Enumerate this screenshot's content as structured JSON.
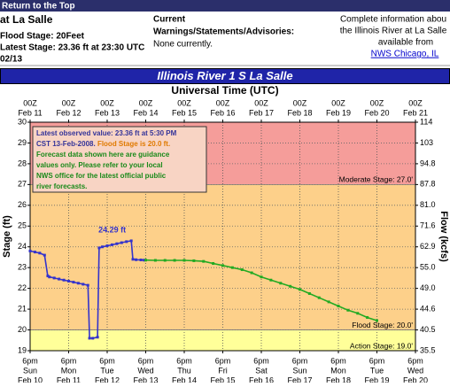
{
  "header": {
    "link": "Return to the Top",
    "location": "at La Salle",
    "flood_stage": "Flood Stage: 20Feet",
    "latest_stage": "Latest Stage: 23.36 ft at 23:30 UTC",
    "date": "02/13"
  },
  "warnings": {
    "title": "Current",
    "subtitle": "Warnings/Statements/Advisories:",
    "text": "None currently."
  },
  "info": {
    "lines": [
      "Complete information abou",
      "the Illinois River at La Salle",
      "available from"
    ],
    "link": "NWS Chicago, IL"
  },
  "chart_data": {
    "type": "line",
    "title": "Illinois River 1 S La Salle",
    "xlabel": "Universal Time (UTC)",
    "ylabel": "Stage (ft)",
    "y2label": "Flow (kcfs)",
    "xlim": [
      "Feb 11 00Z",
      "Feb 21 00Z"
    ],
    "xticks": [
      {
        "value": "Feb 11 00Z",
        "label": [
          "00Z",
          "Feb 11"
        ]
      },
      {
        "value": "Feb 12 00Z",
        "label": [
          "00Z",
          "Feb 12"
        ]
      },
      {
        "value": "Feb 13 00Z",
        "label": [
          "00Z",
          "Feb 13"
        ]
      },
      {
        "value": "Feb 14 00Z",
        "label": [
          "00Z",
          "Feb 14"
        ]
      },
      {
        "value": "Feb 15 00Z",
        "label": [
          "00Z",
          "Feb 15"
        ]
      },
      {
        "value": "Feb 16 00Z",
        "label": [
          "00Z",
          "Feb 16"
        ]
      },
      {
        "value": "Feb 17 00Z",
        "label": [
          "00Z",
          "Feb 17"
        ]
      },
      {
        "value": "Feb 18 00Z",
        "label": [
          "00Z",
          "Feb 18"
        ]
      },
      {
        "value": "Feb 19 00Z",
        "label": [
          "00Z",
          "Feb 19"
        ]
      },
      {
        "value": "Feb 20 00Z",
        "label": [
          "00Z",
          "Feb 20"
        ]
      },
      {
        "value": "Feb 21 00Z",
        "label": [
          "00Z",
          "Feb 21"
        ]
      }
    ],
    "x2ticks": [
      {
        "value": "Feb 11 00Z",
        "label": [
          "6pm",
          "Sun",
          "Feb 10"
        ]
      },
      {
        "value": "Feb 12 00Z",
        "label": [
          "6pm",
          "Mon",
          "Feb 11"
        ]
      },
      {
        "value": "Feb 13 00Z",
        "label": [
          "6pm",
          "Tue",
          "Feb 12"
        ]
      },
      {
        "value": "Feb 14 00Z",
        "label": [
          "6pm",
          "Wed",
          "Feb 13"
        ]
      },
      {
        "value": "Feb 15 00Z",
        "label": [
          "6pm",
          "Thu",
          "Feb 14"
        ]
      },
      {
        "value": "Feb 16 00Z",
        "label": [
          "6pm",
          "Fri",
          "Feb 15"
        ]
      },
      {
        "value": "Feb 17 00Z",
        "label": [
          "6pm",
          "Sat",
          "Feb 16"
        ]
      },
      {
        "value": "Feb 18 00Z",
        "label": [
          "6pm",
          "Sun",
          "Feb 17"
        ]
      },
      {
        "value": "Feb 19 00Z",
        "label": [
          "6pm",
          "Mon",
          "Feb 18"
        ]
      },
      {
        "value": "Feb 20 00Z",
        "label": [
          "6pm",
          "Tue",
          "Feb 19"
        ]
      },
      {
        "value": "Feb 21 00Z",
        "label": [
          "6pm",
          "Wed",
          "Feb 20"
        ]
      }
    ],
    "ylim": [
      19,
      30
    ],
    "yticks": [
      19,
      20,
      21,
      22,
      23,
      24,
      25,
      26,
      27,
      28,
      29,
      30
    ],
    "y2ticks": [
      35.5,
      40.5,
      44.6,
      {
        "value": 49,
        "label": "49.0"
      },
      {
        "value": 55,
        "label": "55.0"
      },
      62.9,
      71.6,
      {
        "value": 81,
        "label": "81.0"
      },
      87.8,
      94.8,
      103,
      114
    ],
    "grid": true,
    "stages": [
      {
        "label": "Action Stage: 19.0'",
        "value": 19,
        "color": "#ffff99"
      },
      {
        "label": "Flood Stage: 20.0'",
        "value": 20,
        "color": "#fdd08a"
      },
      {
        "label": "Moderate Stage: 27.0'",
        "value": 27,
        "color": "#f59d9a"
      }
    ],
    "series": [
      {
        "color": "#3333cc",
        "x": [
          "Feb 11 00Z",
          "Feb 11 03Z",
          "Feb 11 06Z",
          "Feb 11 09Z",
          "Feb 11 11Z",
          "Feb 11 12Z",
          "Feb 11 15Z",
          "Feb 11 18Z",
          "Feb 11 21Z",
          "Feb 12 00Z",
          "Feb 12 03Z",
          "Feb 12 06Z",
          "Feb 12 09Z",
          "Feb 12 12Z",
          "Feb 12 13Z",
          "Feb 12 15Z",
          "Feb 12 18Z",
          "Feb 12 19Z",
          "Feb 12 21Z",
          "Feb 13 00Z",
          "Feb 13 03Z",
          "Feb 13 06Z",
          "Feb 13 09Z",
          "Feb 13 12Z",
          "Feb 13 15Z",
          "Feb 13 16Z",
          "Feb 13 18Z",
          "Feb 13 21Z",
          "Feb 13 23Z"
        ],
        "values": [
          23.8,
          23.75,
          23.7,
          23.6,
          22.6,
          22.55,
          22.5,
          22.45,
          22.4,
          22.35,
          22.3,
          22.25,
          22.2,
          22.15,
          19.6,
          19.6,
          19.65,
          23.95,
          24.0,
          24.05,
          24.1,
          24.15,
          24.2,
          24.25,
          24.29,
          23.4,
          23.38,
          23.37,
          23.36
        ],
        "value_labels": [
          null,
          null,
          null,
          null,
          null,
          null,
          null,
          null,
          null,
          null,
          null,
          null,
          null,
          null,
          null,
          null,
          null,
          null,
          null,
          null,
          null,
          null,
          null,
          null,
          "24.29 ft",
          null,
          null,
          null,
          null
        ]
      },
      {
        "color": "#22aa22",
        "x": [
          "Feb 14 00Z",
          "Feb 14 06Z",
          "Feb 14 12Z",
          "Feb 14 18Z",
          "Feb 15 00Z",
          "Feb 15 06Z",
          "Feb 15 12Z",
          "Feb 15 18Z",
          "Feb 16 00Z",
          "Feb 16 06Z",
          "Feb 16 12Z",
          "Feb 16 18Z",
          "Feb 17 00Z",
          "Feb 17 06Z",
          "Feb 17 12Z",
          "Feb 17 18Z",
          "Feb 18 00Z",
          "Feb 18 06Z",
          "Feb 18 12Z",
          "Feb 18 18Z",
          "Feb 19 00Z",
          "Feb 19 06Z",
          "Feb 19 12Z",
          "Feb 19 18Z",
          "Feb 20 00Z"
        ],
        "values": [
          23.36,
          23.35,
          23.35,
          23.35,
          23.35,
          23.33,
          23.3,
          23.2,
          23.1,
          23.0,
          22.9,
          22.75,
          22.55,
          22.4,
          22.25,
          22.1,
          21.95,
          21.75,
          21.55,
          21.35,
          21.15,
          20.95,
          20.8,
          20.6,
          20.45
        ]
      }
    ],
    "notes": {
      "observed": "Latest observed value: 23.36 ft at 5:30 PM",
      "time": "CST 13-Feb-2008.",
      "flood": "Flood Stage is 20.0 ft.",
      "forecast": [
        "Forecast data shown here are guidance",
        "values only. Please refer to your local",
        "NWS office for the latest official public",
        "river forecasts."
      ]
    }
  }
}
